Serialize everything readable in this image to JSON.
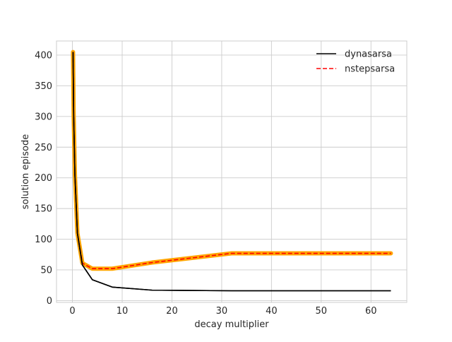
{
  "chart_data": {
    "type": "line",
    "xlabel": "decay multiplier",
    "ylabel": "solution episode",
    "xlim": [
      -3.2,
      67.2
    ],
    "ylim": [
      -3,
      423
    ],
    "xticks": [
      0,
      10,
      20,
      30,
      40,
      50,
      60
    ],
    "yticks": [
      0,
      50,
      100,
      150,
      200,
      250,
      300,
      350,
      400
    ],
    "grid": true,
    "legend_position": "top-right",
    "series": [
      {
        "name": "dynasarsa",
        "color": "#000000",
        "style": "solid",
        "x": [
          0.125,
          0.25,
          0.5,
          1,
          2,
          4,
          8,
          16,
          32,
          64
        ],
        "y": [
          405,
          300,
          205,
          110,
          58,
          34,
          22,
          17,
          16,
          16
        ]
      },
      {
        "name": "nstepsarsa",
        "color": "#ff0000",
        "style": "dashed",
        "band_color": "#ffa500",
        "x": [
          0.125,
          0.25,
          0.5,
          1,
          2,
          4,
          8,
          16,
          32,
          64
        ],
        "y": [
          405,
          300,
          205,
          110,
          61,
          52,
          52,
          62,
          77,
          77
        ]
      }
    ]
  }
}
